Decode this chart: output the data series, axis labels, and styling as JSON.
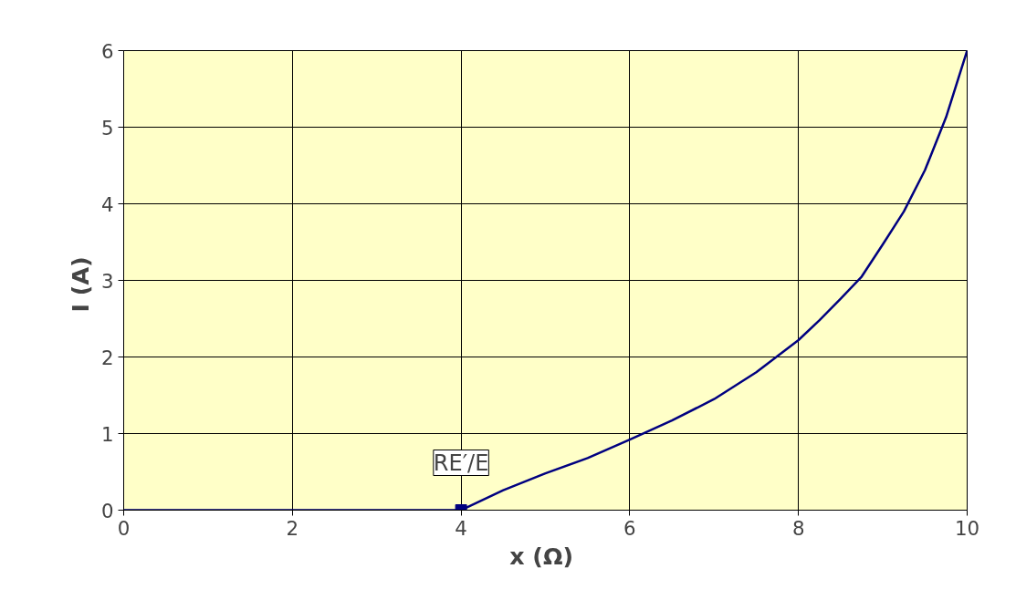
{
  "chart_data": {
    "type": "line",
    "xlabel": "x  (Ω)",
    "ylabel": "I  (A)",
    "xlim": [
      0,
      10
    ],
    "ylim": [
      0,
      6
    ],
    "xticks": [
      0,
      2,
      4,
      6,
      8,
      10
    ],
    "yticks": [
      0,
      1,
      2,
      3,
      4,
      5,
      6
    ],
    "grid": true,
    "line_style": "solid",
    "series": [
      {
        "color": "#000080",
        "marker": "none",
        "x": [
          0,
          1,
          2,
          3,
          3.5,
          4,
          4.5,
          5,
          5.5,
          6,
          6.5,
          7,
          7.5,
          8,
          8.25,
          8.5,
          8.75,
          9,
          9.25,
          9.5,
          9.75,
          10
        ],
        "values": [
          0,
          0,
          0,
          0,
          0,
          0,
          0.26,
          0.48,
          0.68,
          0.92,
          1.17,
          1.45,
          1.8,
          2.22,
          2.48,
          2.76,
          3.05,
          3.47,
          3.9,
          4.44,
          5.13,
          6
        ]
      },
      {
        "type": "scatter",
        "color": "#000080",
        "marker": "square",
        "x": [
          4
        ],
        "values": [
          0
        ]
      }
    ],
    "annotations": [
      {
        "text": "RE′/E",
        "x": 4,
        "y": 0
      }
    ]
  }
}
